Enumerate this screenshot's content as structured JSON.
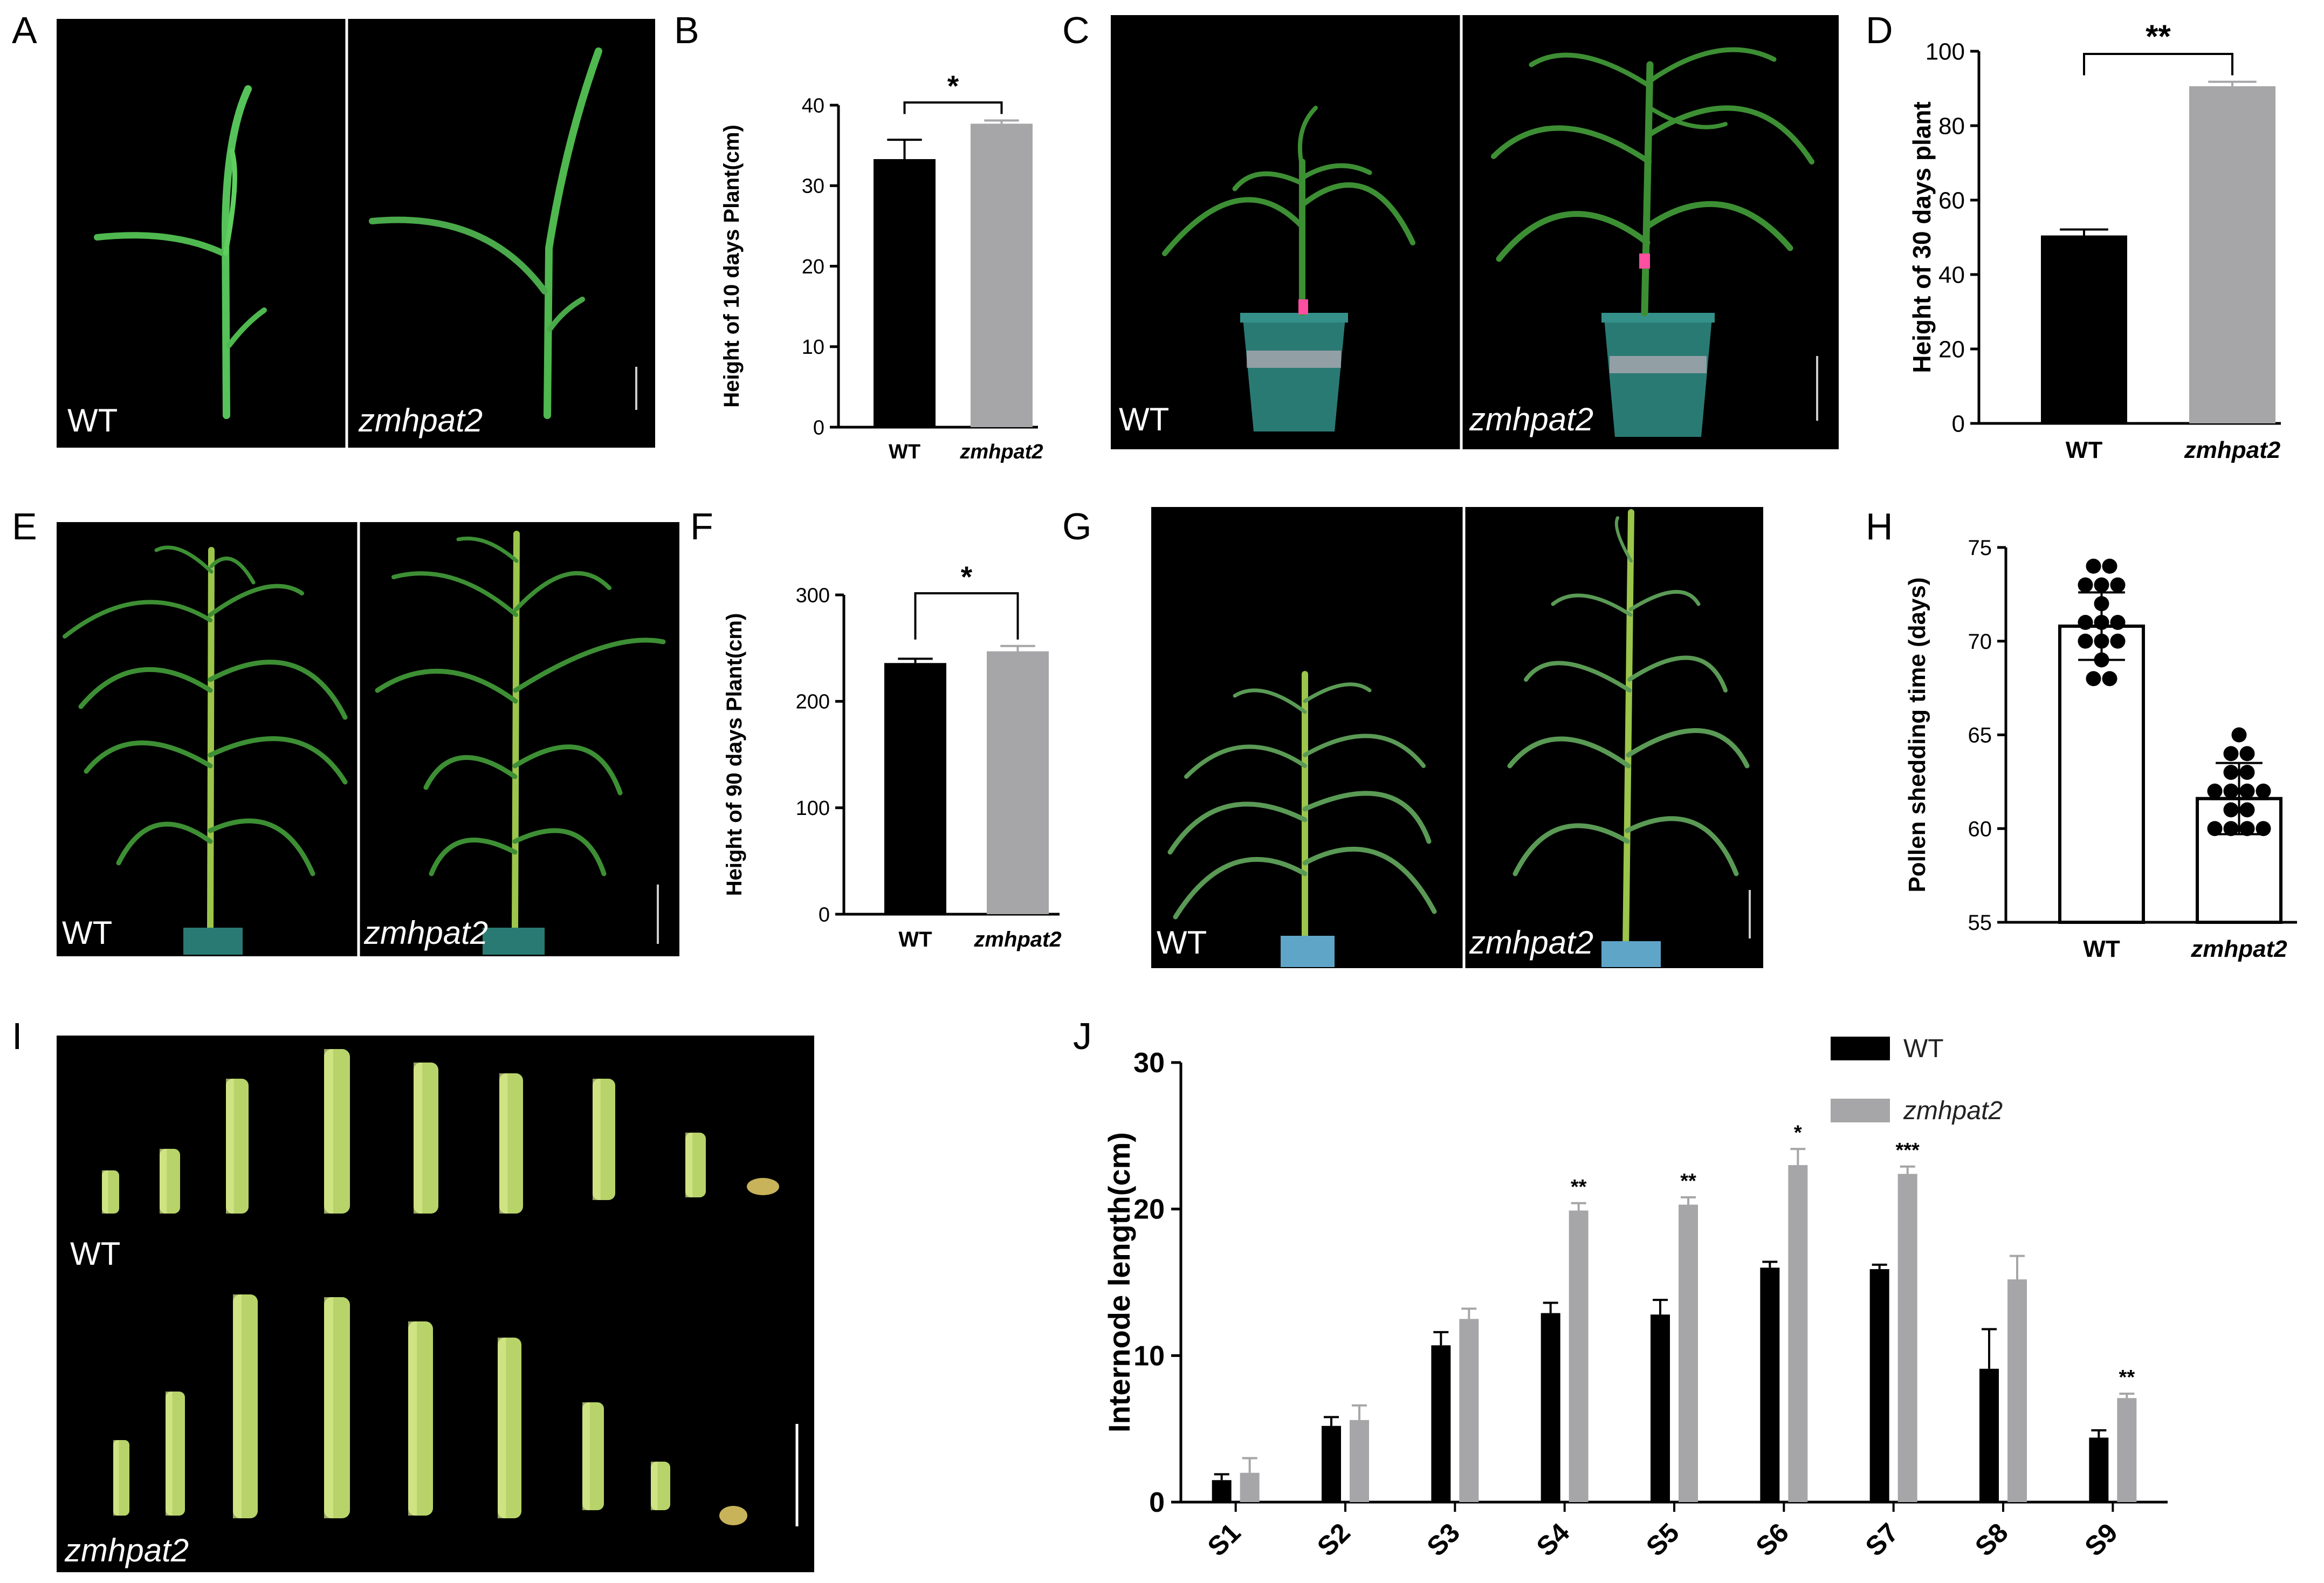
{
  "panel_letters": [
    "A",
    "B",
    "C",
    "D",
    "E",
    "F",
    "G",
    "H",
    "I",
    "J"
  ],
  "photo_labels": {
    "A": {
      "left": "WT",
      "right": "zmhpat2"
    },
    "C": {
      "left": "WT",
      "right": "zmhpat2"
    },
    "E": {
      "left": "WT",
      "right": "zmhpat2"
    },
    "G": {
      "left": "WT",
      "right": "zmhpat2"
    },
    "I": {
      "top": "WT",
      "bottom": "zmhpat2"
    }
  },
  "colors": {
    "wt": "#000000",
    "mutant": "#a6a6a9",
    "photo_bg": "#000000",
    "stem": "#b7d36a",
    "leaf": "#3d8f34"
  },
  "chart_data": [
    {
      "id": "B",
      "type": "bar",
      "ylabel": "Height of  10 days Plant(cm)",
      "categories": [
        "WT",
        "zmhpat2"
      ],
      "values": [
        33.3,
        37.7
      ],
      "errors": [
        2.4,
        0.4
      ],
      "ylim": [
        0,
        40
      ],
      "yticks": [
        "0",
        "10",
        "20",
        "30",
        "40"
      ],
      "significance": "*"
    },
    {
      "id": "D",
      "type": "bar",
      "ylabel": "Height of 30 days plant",
      "categories": [
        "WT",
        "zmhpat2"
      ],
      "values": [
        50.5,
        90.6
      ],
      "errors": [
        1.6,
        1.2
      ],
      "ylim": [
        0,
        100
      ],
      "yticks": [
        "0",
        "20",
        "40",
        "60",
        "80",
        "100"
      ],
      "significance": "**"
    },
    {
      "id": "F",
      "type": "bar",
      "ylabel": "Height of 90 days Plant(cm)",
      "categories": [
        "WT",
        "zmhpat2"
      ],
      "values": [
        236,
        247
      ],
      "errors": [
        4,
        5
      ],
      "ylim": [
        0,
        300
      ],
      "yticks": [
        "0",
        "100",
        "200",
        "300"
      ],
      "significance": "*"
    },
    {
      "id": "H",
      "type": "bar",
      "ylabel": "Pollen shedding time (days)",
      "categories": [
        "WT",
        "zmhpat2"
      ],
      "values": [
        70.8,
        61.6
      ],
      "errors": [
        1.8,
        1.9
      ],
      "ylim": [
        55,
        75
      ],
      "yticks": [
        "55",
        "60",
        "65",
        "70",
        "75"
      ],
      "points": [
        [
          74,
          74,
          73,
          73,
          73,
          72,
          71,
          71,
          71,
          70,
          70,
          70,
          69,
          68,
          68
        ],
        [
          65,
          64,
          64,
          63,
          63,
          62,
          62,
          62,
          62,
          61,
          61,
          60,
          60,
          60,
          60
        ]
      ]
    },
    {
      "id": "J",
      "type": "bar",
      "ylabel": "Internode length(cm)",
      "categories": [
        "S1",
        "S2",
        "S3",
        "S4",
        "S5",
        "S6",
        "S7",
        "S8",
        "S9"
      ],
      "series": [
        {
          "name": "WT",
          "values": [
            1.5,
            5.2,
            10.7,
            12.9,
            12.8,
            16.0,
            15.9,
            9.1,
            4.4
          ],
          "errors": [
            0.4,
            0.6,
            0.9,
            0.7,
            1.0,
            0.4,
            0.3,
            2.7,
            0.5
          ]
        },
        {
          "name": "zmhpat2",
          "values": [
            2.0,
            5.6,
            12.5,
            19.9,
            20.3,
            23.0,
            22.4,
            15.2,
            7.1
          ],
          "errors": [
            1.0,
            1.0,
            0.7,
            0.5,
            0.5,
            1.1,
            0.5,
            1.6,
            0.3
          ]
        }
      ],
      "significance": [
        "",
        "",
        "",
        "**",
        "**",
        "*",
        "***",
        "",
        "**"
      ],
      "ylim": [
        0,
        30
      ],
      "yticks": [
        "0",
        "10",
        "20",
        "30"
      ],
      "legend": "top-right"
    }
  ]
}
